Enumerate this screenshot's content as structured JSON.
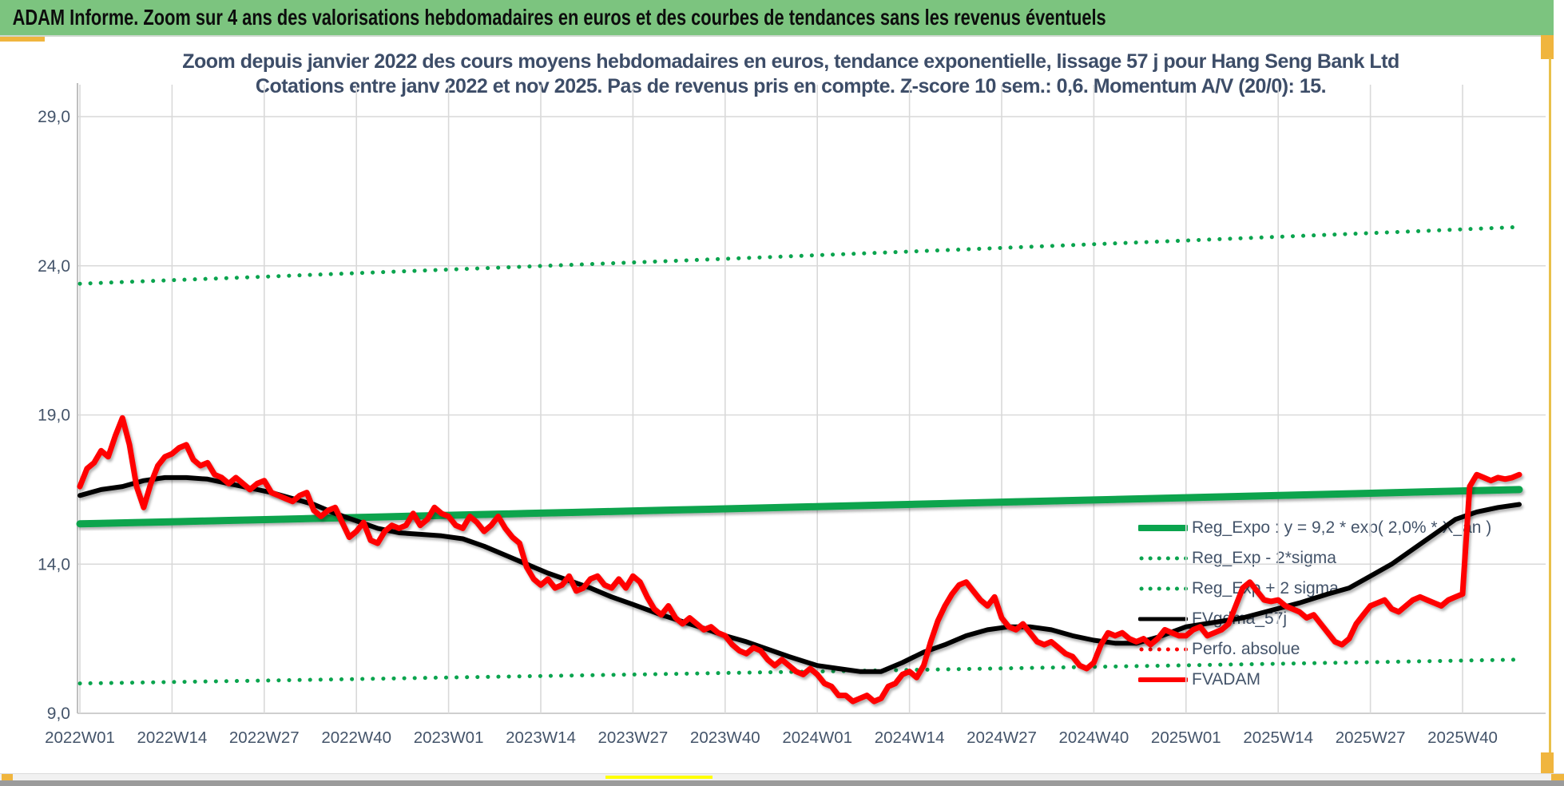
{
  "header": {
    "title": "ADAM Informe. Zoom sur 4 ans des valorisations hebdomadaires en euros et des courbes de tendances sans les revenus éventuels"
  },
  "chart_data": {
    "type": "line",
    "title_line1": "Zoom depuis janvier 2022 des cours moyens hebdomadaires en euros, tendance exponentielle, lissage 57 j pour Hang Seng Bank Ltd",
    "title_line2": "Cotations entre janv 2022 et nov 2025. Pas de revenus pris en compte. Z-score 10 sem.: 0,6. Momentum A/V (20/0): 15.",
    "ylabel": "",
    "xlabel": "",
    "ylim": [
      9.0,
      29.0
    ],
    "grid": true,
    "legend_position": "right-middle",
    "y_ticks": [
      29,
      24,
      19,
      14,
      9
    ],
    "y_tick_labels": [
      "29,0",
      "24,0",
      "19,0",
      "14,0",
      "9,0"
    ],
    "x_tick_weeks": [
      0,
      13,
      26,
      39,
      52,
      65,
      78,
      91,
      104,
      117,
      130,
      143,
      156,
      169,
      182,
      195
    ],
    "x_tick_labels": [
      "2022W01",
      "2022W14",
      "2022W27",
      "2022W40",
      "2023W01",
      "2023W14",
      "2023W27",
      "2023W40",
      "2024W01",
      "2024W14",
      "2024W27",
      "2024W40",
      "2025W01",
      "2025W14",
      "2025W27",
      "2025W40"
    ],
    "weeks_total": 203,
    "colors": {
      "green": "#0aa44e",
      "red": "#ff0000",
      "black": "#000000",
      "grid": "#d9d9d9",
      "axis": "#bfbfbf",
      "text": "#44546a",
      "title": "#3d4d68"
    },
    "series": [
      {
        "name": "Reg_Expo : y = 9,2 * exp( 2,0% *  X_an )",
        "type": "exp",
        "color": "#0aa44e",
        "style": "solid",
        "width": 9,
        "start": 15.35,
        "end": 16.5
      },
      {
        "name": "Reg_Exp - 2*sigma",
        "type": "exp",
        "color": "#0aa44e",
        "style": "dotted",
        "width": 5,
        "start": 10.0,
        "end": 10.8
      },
      {
        "name": "Reg_Exp + 2 sigma",
        "type": "exp",
        "color": "#0aa44e",
        "style": "dotted",
        "width": 5,
        "start": 23.4,
        "end": 25.3
      },
      {
        "name": "FVgdma_57j",
        "type": "points",
        "color": "#000000",
        "style": "solid",
        "width": 6,
        "points": [
          [
            0,
            16.3
          ],
          [
            3,
            16.5
          ],
          [
            6,
            16.6
          ],
          [
            9,
            16.8
          ],
          [
            12,
            16.9
          ],
          [
            15,
            16.9
          ],
          [
            18,
            16.85
          ],
          [
            21,
            16.7
          ],
          [
            24,
            16.55
          ],
          [
            27,
            16.4
          ],
          [
            30,
            16.2
          ],
          [
            33,
            16.0
          ],
          [
            36,
            15.7
          ],
          [
            39,
            15.45
          ],
          [
            42,
            15.2
          ],
          [
            45,
            15.05
          ],
          [
            48,
            15.0
          ],
          [
            51,
            14.95
          ],
          [
            54,
            14.85
          ],
          [
            57,
            14.6
          ],
          [
            60,
            14.3
          ],
          [
            63,
            14.0
          ],
          [
            66,
            13.7
          ],
          [
            69,
            13.45
          ],
          [
            72,
            13.2
          ],
          [
            75,
            12.9
          ],
          [
            78,
            12.65
          ],
          [
            82,
            12.3
          ],
          [
            86,
            12.0
          ],
          [
            88,
            11.85
          ],
          [
            91,
            11.6
          ],
          [
            94,
            11.4
          ],
          [
            97,
            11.15
          ],
          [
            100,
            10.9
          ],
          [
            104,
            10.6
          ],
          [
            107,
            10.5
          ],
          [
            110,
            10.4
          ],
          [
            113,
            10.4
          ],
          [
            116,
            10.7
          ],
          [
            119,
            11.05
          ],
          [
            122,
            11.3
          ],
          [
            125,
            11.6
          ],
          [
            128,
            11.8
          ],
          [
            131,
            11.9
          ],
          [
            134,
            11.9
          ],
          [
            137,
            11.8
          ],
          [
            140,
            11.6
          ],
          [
            143,
            11.45
          ],
          [
            146,
            11.35
          ],
          [
            149,
            11.35
          ],
          [
            152,
            11.55
          ],
          [
            156,
            11.9
          ],
          [
            160,
            12.05
          ],
          [
            164,
            12.2
          ],
          [
            168,
            12.45
          ],
          [
            172,
            12.7
          ],
          [
            176,
            13.0
          ],
          [
            179,
            13.2
          ],
          [
            182,
            13.6
          ],
          [
            185,
            14.0
          ],
          [
            188,
            14.5
          ],
          [
            191,
            15.0
          ],
          [
            194,
            15.5
          ],
          [
            197,
            15.75
          ],
          [
            200,
            15.9
          ],
          [
            203,
            16.0
          ]
        ]
      },
      {
        "name": "Perfo. absolue",
        "type": "none",
        "color": "#ff0000",
        "style": "dotted",
        "width": 5
      },
      {
        "name": "FVADAM",
        "type": "points",
        "color": "#ff0000",
        "style": "solid",
        "width": 7,
        "points": [
          [
            0,
            16.6
          ],
          [
            1,
            17.2
          ],
          [
            2,
            17.4
          ],
          [
            3,
            17.8
          ],
          [
            4,
            17.6
          ],
          [
            5,
            18.3
          ],
          [
            6,
            18.9
          ],
          [
            7,
            18.0
          ],
          [
            8,
            16.6
          ],
          [
            9,
            15.9
          ],
          [
            10,
            16.7
          ],
          [
            11,
            17.3
          ],
          [
            12,
            17.6
          ],
          [
            13,
            17.7
          ],
          [
            14,
            17.9
          ],
          [
            15,
            18.0
          ],
          [
            16,
            17.5
          ],
          [
            17,
            17.3
          ],
          [
            18,
            17.4
          ],
          [
            19,
            17.0
          ],
          [
            20,
            16.9
          ],
          [
            21,
            16.7
          ],
          [
            22,
            16.9
          ],
          [
            23,
            16.7
          ],
          [
            24,
            16.5
          ],
          [
            25,
            16.7
          ],
          [
            26,
            16.8
          ],
          [
            27,
            16.4
          ],
          [
            28,
            16.3
          ],
          [
            29,
            16.2
          ],
          [
            30,
            16.1
          ],
          [
            31,
            16.3
          ],
          [
            32,
            16.4
          ],
          [
            33,
            15.8
          ],
          [
            34,
            15.6
          ],
          [
            35,
            15.8
          ],
          [
            36,
            15.9
          ],
          [
            37,
            15.4
          ],
          [
            38,
            14.9
          ],
          [
            39,
            15.1
          ],
          [
            40,
            15.4
          ],
          [
            41,
            14.8
          ],
          [
            42,
            14.7
          ],
          [
            43,
            15.1
          ],
          [
            44,
            15.3
          ],
          [
            45,
            15.2
          ],
          [
            46,
            15.3
          ],
          [
            47,
            15.7
          ],
          [
            48,
            15.3
          ],
          [
            49,
            15.5
          ],
          [
            50,
            15.9
          ],
          [
            51,
            15.7
          ],
          [
            52,
            15.6
          ],
          [
            53,
            15.3
          ],
          [
            54,
            15.2
          ],
          [
            55,
            15.6
          ],
          [
            56,
            15.4
          ],
          [
            57,
            15.1
          ],
          [
            58,
            15.3
          ],
          [
            59,
            15.6
          ],
          [
            60,
            15.2
          ],
          [
            61,
            14.9
          ],
          [
            62,
            14.7
          ],
          [
            63,
            13.9
          ],
          [
            64,
            13.5
          ],
          [
            65,
            13.3
          ],
          [
            66,
            13.5
          ],
          [
            67,
            13.2
          ],
          [
            68,
            13.3
          ],
          [
            69,
            13.6
          ],
          [
            70,
            13.1
          ],
          [
            71,
            13.2
          ],
          [
            72,
            13.5
          ],
          [
            73,
            13.6
          ],
          [
            74,
            13.3
          ],
          [
            75,
            13.2
          ],
          [
            76,
            13.5
          ],
          [
            77,
            13.2
          ],
          [
            78,
            13.6
          ],
          [
            79,
            13.4
          ],
          [
            80,
            12.9
          ],
          [
            81,
            12.5
          ],
          [
            82,
            12.3
          ],
          [
            83,
            12.6
          ],
          [
            84,
            12.2
          ],
          [
            85,
            12.0
          ],
          [
            86,
            12.2
          ],
          [
            87,
            12.0
          ],
          [
            88,
            11.8
          ],
          [
            89,
            11.9
          ],
          [
            90,
            11.7
          ],
          [
            91,
            11.6
          ],
          [
            92,
            11.3
          ],
          [
            93,
            11.1
          ],
          [
            94,
            11.0
          ],
          [
            95,
            11.2
          ],
          [
            96,
            11.1
          ],
          [
            97,
            10.8
          ],
          [
            98,
            10.6
          ],
          [
            99,
            10.8
          ],
          [
            100,
            10.6
          ],
          [
            101,
            10.4
          ],
          [
            102,
            10.3
          ],
          [
            103,
            10.5
          ],
          [
            104,
            10.3
          ],
          [
            105,
            10.0
          ],
          [
            106,
            9.9
          ],
          [
            107,
            9.6
          ],
          [
            108,
            9.6
          ],
          [
            109,
            9.4
          ],
          [
            110,
            9.5
          ],
          [
            111,
            9.6
          ],
          [
            112,
            9.4
          ],
          [
            113,
            9.5
          ],
          [
            114,
            9.9
          ],
          [
            115,
            10.0
          ],
          [
            116,
            10.3
          ],
          [
            117,
            10.4
          ],
          [
            118,
            10.2
          ],
          [
            119,
            10.6
          ],
          [
            120,
            11.4
          ],
          [
            121,
            12.1
          ],
          [
            122,
            12.6
          ],
          [
            123,
            13.0
          ],
          [
            124,
            13.3
          ],
          [
            125,
            13.4
          ],
          [
            126,
            13.1
          ],
          [
            127,
            12.8
          ],
          [
            128,
            12.6
          ],
          [
            129,
            12.9
          ],
          [
            130,
            12.2
          ],
          [
            131,
            11.9
          ],
          [
            132,
            11.8
          ],
          [
            133,
            12.0
          ],
          [
            134,
            11.7
          ],
          [
            135,
            11.4
          ],
          [
            136,
            11.3
          ],
          [
            137,
            11.4
          ],
          [
            138,
            11.2
          ],
          [
            139,
            11.0
          ],
          [
            140,
            10.9
          ],
          [
            141,
            10.6
          ],
          [
            142,
            10.5
          ],
          [
            143,
            10.7
          ],
          [
            144,
            11.3
          ],
          [
            145,
            11.7
          ],
          [
            146,
            11.6
          ],
          [
            147,
            11.7
          ],
          [
            148,
            11.5
          ],
          [
            149,
            11.4
          ],
          [
            150,
            11.5
          ],
          [
            151,
            11.3
          ],
          [
            152,
            11.5
          ],
          [
            153,
            11.8
          ],
          [
            154,
            11.7
          ],
          [
            155,
            11.6
          ],
          [
            156,
            11.6
          ],
          [
            157,
            11.8
          ],
          [
            158,
            11.9
          ],
          [
            159,
            11.6
          ],
          [
            160,
            11.7
          ],
          [
            161,
            11.8
          ],
          [
            162,
            12.0
          ],
          [
            163,
            12.6
          ],
          [
            164,
            13.2
          ],
          [
            165,
            13.4
          ],
          [
            166,
            13.1
          ],
          [
            167,
            12.8
          ],
          [
            168,
            12.75
          ],
          [
            169,
            12.8
          ],
          [
            170,
            12.6
          ],
          [
            171,
            12.5
          ],
          [
            172,
            12.4
          ],
          [
            173,
            12.2
          ],
          [
            174,
            12.3
          ],
          [
            175,
            12.0
          ],
          [
            176,
            11.7
          ],
          [
            177,
            11.4
          ],
          [
            178,
            11.3
          ],
          [
            179,
            11.5
          ],
          [
            180,
            12.0
          ],
          [
            181,
            12.3
          ],
          [
            182,
            12.6
          ],
          [
            183,
            12.7
          ],
          [
            184,
            12.8
          ],
          [
            185,
            12.5
          ],
          [
            186,
            12.4
          ],
          [
            187,
            12.6
          ],
          [
            188,
            12.8
          ],
          [
            189,
            12.9
          ],
          [
            190,
            12.8
          ],
          [
            191,
            12.7
          ],
          [
            192,
            12.6
          ],
          [
            193,
            12.8
          ],
          [
            194,
            12.9
          ],
          [
            195,
            13.0
          ],
          [
            196,
            16.6
          ],
          [
            197,
            17.0
          ],
          [
            198,
            16.9
          ],
          [
            199,
            16.8
          ],
          [
            200,
            16.9
          ],
          [
            201,
            16.85
          ],
          [
            202,
            16.9
          ],
          [
            203,
            17.0
          ]
        ]
      }
    ]
  }
}
